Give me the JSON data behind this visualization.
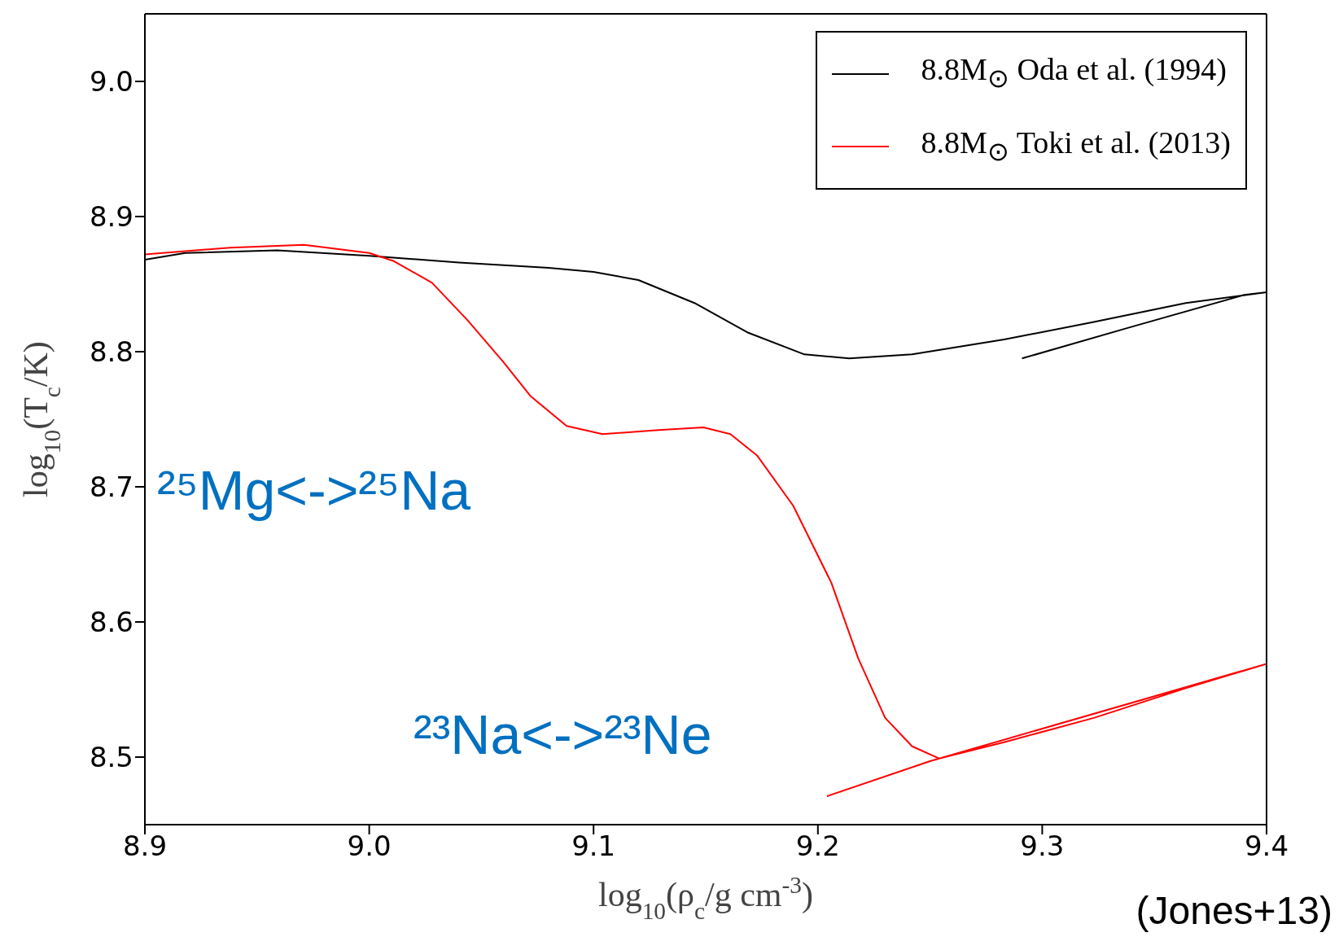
{
  "chart_data": {
    "type": "line",
    "xlabel": "log$_{10}$(ρ$_{c}$/g cm$^{-3}$)",
    "ylabel": "log$_{10}$(T$_{c}$/K)",
    "xlim": [
      8.9,
      9.4
    ],
    "xticks": [
      8.9,
      {
        "value": 9,
        "label": "9.0"
      },
      9.1,
      9.2,
      9.3,
      9.4
    ],
    "ylim": [
      8.45,
      9.05
    ],
    "yticks": [
      8.5,
      8.6,
      8.7,
      8.8,
      8.9,
      {
        "value": 9,
        "label": "9.0"
      }
    ],
    "legend": "top right",
    "marker": "none",
    "line_style": "solid",
    "series": [
      {
        "name": "8.8M$_{⊙}$ Oda et al. (1994)",
        "color": "#000000",
        "x": [
          8.9,
          8.918,
          8.959,
          9.0,
          9.04,
          9.08,
          9.1,
          9.12,
          9.145,
          9.169,
          9.194,
          9.214,
          9.242,
          9.283,
          9.323,
          9.364,
          9.4,
          9.39,
          9.339,
          9.291
        ],
        "values": [
          8.868,
          8.873,
          8.875,
          8.871,
          8.866,
          8.862,
          8.859,
          8.853,
          8.836,
          8.814,
          8.798,
          8.795,
          8.798,
          8.809,
          8.822,
          8.836,
          8.844,
          8.842,
          8.818,
          8.795
        ]
      },
      {
        "name": "8.8M$_{⊙}$ Toki et al. (2013)",
        "color": "#ff0000",
        "x": [
          8.9,
          8.938,
          8.971,
          9.0,
          9.011,
          9.028,
          9.044,
          9.06,
          9.072,
          9.088,
          9.104,
          9.129,
          9.149,
          9.161,
          9.173,
          9.189,
          9.206,
          9.218,
          9.23,
          9.242,
          9.254,
          9.283,
          9.323,
          9.364,
          9.4,
          9.25,
          9.204
        ],
        "values": [
          8.872,
          8.877,
          8.879,
          8.873,
          8.867,
          8.851,
          8.823,
          8.792,
          8.767,
          8.745,
          8.739,
          8.742,
          8.744,
          8.739,
          8.723,
          8.686,
          8.629,
          8.573,
          8.529,
          8.508,
          8.499,
          8.511,
          8.529,
          8.551,
          8.569,
          8.497,
          8.471
        ]
      }
    ],
    "annotations": [
      "²⁵Mg<->²⁵Na",
      "²³Na<->²³Ne",
      "(Jones+13)"
    ]
  }
}
